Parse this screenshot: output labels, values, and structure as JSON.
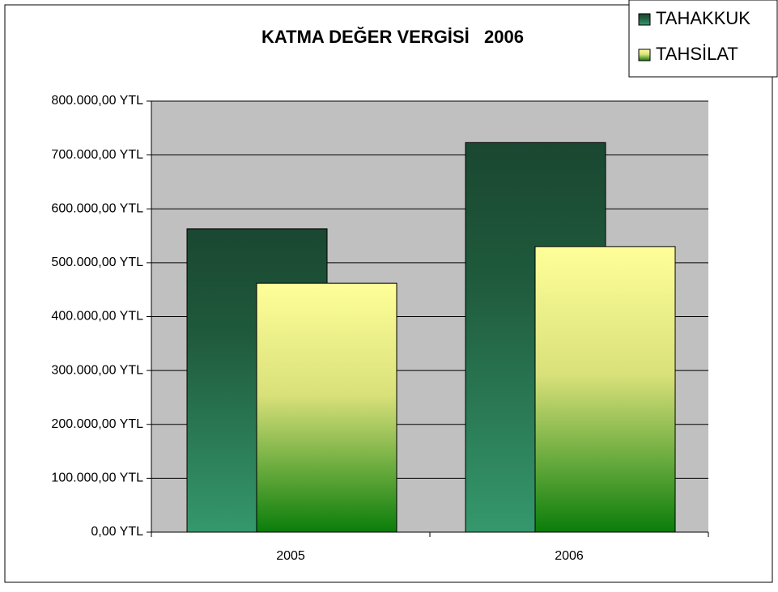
{
  "chart_data": {
    "type": "bar",
    "title": "KATMA DEĞER VERGİSİ   2006",
    "categories": [
      "2005",
      "2006"
    ],
    "series": [
      {
        "name": "TAHAKKUK",
        "color": "#2a7a55",
        "values": [
          563000,
          723000
        ]
      },
      {
        "name": "TAHSİLAT",
        "color": "#e6ee80",
        "values": [
          462000,
          530000
        ]
      }
    ],
    "ylim": [
      0,
      800000
    ],
    "yticks": [
      {
        "value": 0,
        "label": "0,00 YTL"
      },
      {
        "value": 100000,
        "label": "100.000,00 YTL"
      },
      {
        "value": 200000,
        "label": "200.000,00 YTL"
      },
      {
        "value": 300000,
        "label": "300.000,00 YTL"
      },
      {
        "value": 400000,
        "label": "400.000,00 YTL"
      },
      {
        "value": 500000,
        "label": "500.000,00 YTL"
      },
      {
        "value": 600000,
        "label": "600.000,00 YTL"
      },
      {
        "value": 700000,
        "label": "700.000,00 YTL"
      },
      {
        "value": 800000,
        "label": "800.000,00 YTL"
      }
    ],
    "grid": true,
    "legend": "top-right"
  }
}
